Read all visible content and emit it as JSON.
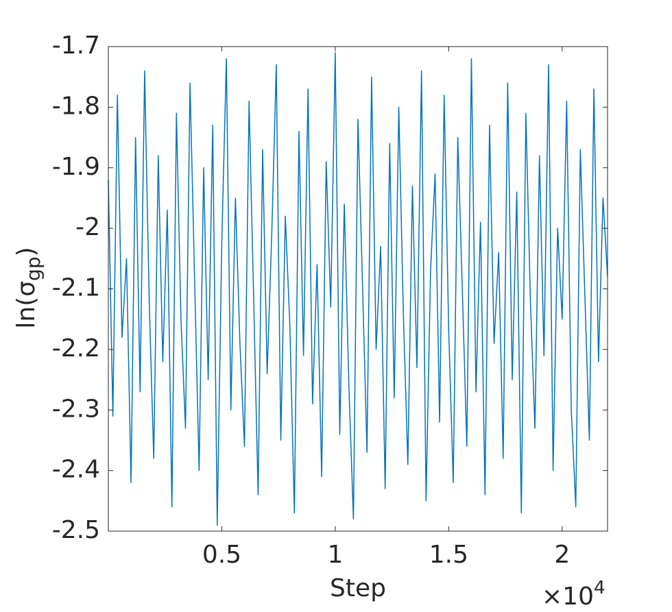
{
  "chart_data": {
    "type": "line",
    "xlabel": "Step",
    "ylabel": {
      "text": "ln(σ",
      "sub": "gp",
      "close": ")"
    },
    "x_multiplier": {
      "base": "×10",
      "exponent": "4"
    },
    "xlim": [
      0,
      22000
    ],
    "xticks": [
      {
        "value": 5000,
        "label": "0.5"
      },
      {
        "value": 10000,
        "label": "1"
      },
      {
        "value": 15000,
        "label": "1.5"
      },
      {
        "value": 20000,
        "label": "2"
      }
    ],
    "ylim": [
      -2.5,
      -1.7
    ],
    "yticks": [
      -2.5,
      -2.4,
      -2.3,
      -2.2,
      -2.1,
      -2,
      -1.9,
      -1.8,
      -1.7
    ],
    "grid": false,
    "color": "#0072bd",
    "x": [
      0,
      200,
      400,
      600,
      800,
      1000,
      1200,
      1400,
      1600,
      1800,
      2000,
      2200,
      2400,
      2600,
      2800,
      3000,
      3200,
      3400,
      3600,
      3800,
      4000,
      4200,
      4400,
      4600,
      4800,
      5000,
      5200,
      5400,
      5600,
      5800,
      6000,
      6200,
      6400,
      6600,
      6800,
      7000,
      7200,
      7400,
      7600,
      7800,
      8000,
      8200,
      8400,
      8600,
      8800,
      9000,
      9200,
      9400,
      9600,
      9800,
      10000,
      10200,
      10400,
      10600,
      10800,
      11000,
      11200,
      11400,
      11600,
      11800,
      12000,
      12200,
      12400,
      12600,
      12800,
      13000,
      13200,
      13400,
      13600,
      13800,
      14000,
      14200,
      14400,
      14600,
      14800,
      15000,
      15200,
      15400,
      15600,
      15800,
      16000,
      16200,
      16400,
      16600,
      16800,
      17000,
      17200,
      17400,
      17600,
      17800,
      18000,
      18200,
      18400,
      18600,
      18800,
      19000,
      19200,
      19400,
      19600,
      19800,
      20000,
      20200,
      20400,
      20600,
      20800,
      21000,
      21200,
      21400,
      21600,
      21800,
      22000
    ],
    "values": [
      -1.92,
      -2.31,
      -1.78,
      -2.18,
      -2.05,
      -2.42,
      -1.85,
      -2.27,
      -1.74,
      -2.12,
      -2.38,
      -1.88,
      -2.22,
      -1.97,
      -2.46,
      -1.81,
      -2.15,
      -2.33,
      -1.76,
      -2.08,
      -2.4,
      -1.9,
      -2.25,
      -1.83,
      -2.49,
      -2.02,
      -1.72,
      -2.3,
      -1.95,
      -2.19,
      -2.36,
      -1.79,
      -2.11,
      -2.44,
      -1.87,
      -2.24,
      -2.01,
      -1.73,
      -2.35,
      -1.98,
      -2.16,
      -2.47,
      -1.84,
      -2.21,
      -1.77,
      -2.29,
      -2.06,
      -2.41,
      -1.89,
      -2.13,
      -1.71,
      -2.34,
      -1.96,
      -2.26,
      -2.48,
      -1.82,
      -2.09,
      -2.37,
      -1.75,
      -2.2,
      -2.03,
      -2.43,
      -1.86,
      -2.28,
      -1.8,
      -2.14,
      -2.39,
      -1.93,
      -2.23,
      -1.74,
      -2.45,
      -2.07,
      -1.91,
      -2.32,
      -1.78,
      -2.17,
      -2.42,
      -1.85,
      -2.1,
      -2.36,
      -1.72,
      -2.27,
      -1.99,
      -2.44,
      -1.83,
      -2.19,
      -2.04,
      -2.38,
      -1.76,
      -2.25,
      -1.94,
      -2.47,
      -1.81,
      -2.12,
      -2.33,
      -1.88,
      -2.21,
      -1.73,
      -2.4,
      -2.0,
      -2.15,
      -1.79,
      -2.3,
      -2.46,
      -1.87,
      -2.11,
      -2.35,
      -1.77,
      -2.22,
      -1.95,
      -2.08
    ]
  }
}
